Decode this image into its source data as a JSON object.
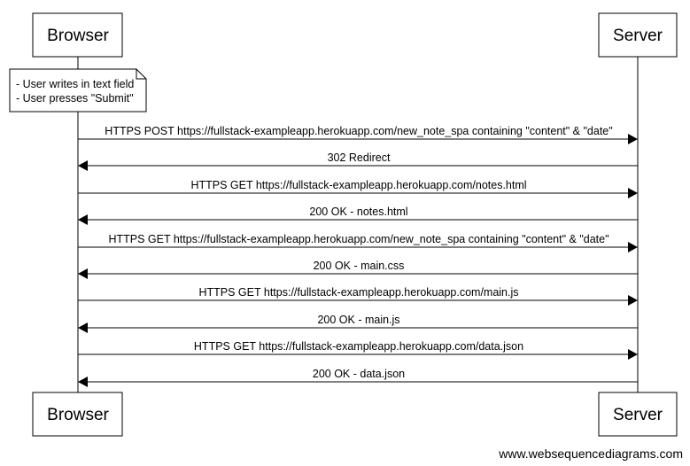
{
  "participants": {
    "browser": "Browser",
    "server": "Server"
  },
  "note": {
    "lines": [
      "- User writes in text field",
      "- User presses \"Submit\""
    ]
  },
  "messages": [
    {
      "from": "browser",
      "to": "server",
      "label": "HTTPS POST https://fullstack-exampleapp.herokuapp.com/new_note_spa containing \"content\" & \"date\""
    },
    {
      "from": "server",
      "to": "browser",
      "label": "302 Redirect"
    },
    {
      "from": "browser",
      "to": "server",
      "label": "HTTPS GET https://fullstack-exampleapp.herokuapp.com/notes.html"
    },
    {
      "from": "server",
      "to": "browser",
      "label": "200 OK - notes.html"
    },
    {
      "from": "browser",
      "to": "server",
      "label": "HTTPS GET https://fullstack-exampleapp.herokuapp.com/new_note_spa containing \"content\" & \"date\""
    },
    {
      "from": "server",
      "to": "browser",
      "label": "200 OK - main.css"
    },
    {
      "from": "browser",
      "to": "server",
      "label": "HTTPS GET https://fullstack-exampleapp.herokuapp.com/main.js"
    },
    {
      "from": "server",
      "to": "browser",
      "label": "200 OK - main.js"
    },
    {
      "from": "browser",
      "to": "server",
      "label": "HTTPS GET https://fullstack-exampleapp.herokuapp.com/data.json"
    },
    {
      "from": "server",
      "to": "browser",
      "label": "200 OK - data.json"
    }
  ],
  "footer": "www.websequencediagrams.com"
}
